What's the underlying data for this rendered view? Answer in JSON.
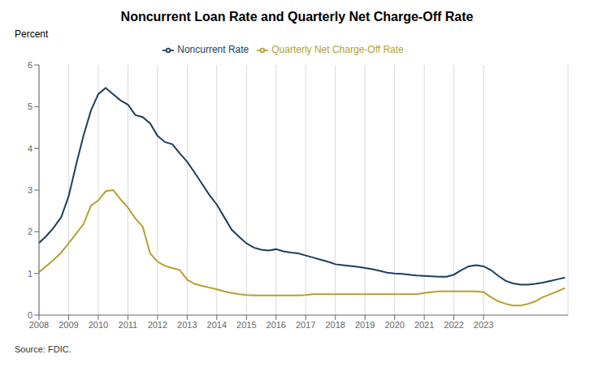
{
  "chart_data": {
    "type": "line",
    "title": "Noncurrent Loan Rate and Quarterly Net Charge-Off Rate",
    "ylabel": "Percent",
    "annotations": [
      "Source: FDIC."
    ],
    "x": [
      2008,
      2008.25,
      2008.5,
      2008.75,
      2009,
      2009.25,
      2009.5,
      2009.75,
      2010,
      2010.25,
      2010.5,
      2010.75,
      2011,
      2011.25,
      2011.5,
      2011.75,
      2012,
      2012.25,
      2012.5,
      2012.75,
      2013,
      2013.25,
      2013.5,
      2013.75,
      2014,
      2014.25,
      2014.5,
      2014.75,
      2015,
      2015.25,
      2015.5,
      2015.75,
      2016,
      2016.25,
      2016.5,
      2016.75,
      2017,
      2017.25,
      2017.5,
      2017.75,
      2018,
      2018.25,
      2018.5,
      2018.75,
      2019,
      2019.25,
      2019.5,
      2019.75,
      2020,
      2020.25,
      2020.5,
      2020.75,
      2021,
      2021.25,
      2021.5,
      2021.75,
      2022,
      2022.25,
      2022.5,
      2022.75,
      2023,
      2023.25,
      2023.5,
      2023.75,
      2024,
      2024.25,
      2024.5,
      2024.75,
      2025,
      2025.25,
      2025.5,
      2025.75
    ],
    "series": [
      {
        "name": "Noncurrent Rate",
        "color": "#1b3f5e",
        "values": [
          1.73,
          1.9,
          2.1,
          2.35,
          2.85,
          3.6,
          4.3,
          4.9,
          5.3,
          5.45,
          5.3,
          5.15,
          5.05,
          4.8,
          4.75,
          4.6,
          4.3,
          4.15,
          4.1,
          3.88,
          3.68,
          3.42,
          3.15,
          2.88,
          2.65,
          2.35,
          2.05,
          1.88,
          1.72,
          1.62,
          1.57,
          1.55,
          1.58,
          1.53,
          1.5,
          1.48,
          1.43,
          1.38,
          1.33,
          1.28,
          1.22,
          1.2,
          1.18,
          1.16,
          1.13,
          1.1,
          1.06,
          1.02,
          1.0,
          0.99,
          0.97,
          0.95,
          0.94,
          0.93,
          0.92,
          0.92,
          0.97,
          1.08,
          1.17,
          1.2,
          1.17,
          1.08,
          0.94,
          0.82,
          0.76,
          0.73,
          0.73,
          0.75,
          0.78,
          0.82,
          0.86,
          0.9
        ]
      },
      {
        "name": "Quarterly Net Charge-Off Rate",
        "color": "#b5a030",
        "values": [
          1.03,
          1.18,
          1.33,
          1.5,
          1.72,
          1.95,
          2.18,
          2.62,
          2.75,
          2.97,
          3.0,
          2.78,
          2.58,
          2.32,
          2.12,
          1.48,
          1.28,
          1.18,
          1.13,
          1.08,
          0.85,
          0.75,
          0.7,
          0.66,
          0.62,
          0.57,
          0.53,
          0.5,
          0.48,
          0.47,
          0.47,
          0.47,
          0.47,
          0.47,
          0.47,
          0.47,
          0.48,
          0.5,
          0.5,
          0.5,
          0.5,
          0.5,
          0.5,
          0.5,
          0.5,
          0.5,
          0.5,
          0.5,
          0.5,
          0.5,
          0.5,
          0.5,
          0.53,
          0.55,
          0.57,
          0.57,
          0.57,
          0.57,
          0.57,
          0.57,
          0.55,
          0.43,
          0.33,
          0.27,
          0.23,
          0.23,
          0.27,
          0.33,
          0.43,
          0.5,
          0.57,
          0.65
        ]
      }
    ],
    "xlim": [
      2008,
      2025.85
    ],
    "xticks": [
      2008,
      2009,
      2010,
      2011,
      2012,
      2013,
      2014,
      2015,
      2016,
      2017,
      2018,
      2019,
      2020,
      2021,
      2022,
      2023
    ],
    "ylim": [
      0,
      6
    ],
    "yticks": [
      0,
      1,
      2,
      3,
      4,
      5,
      6
    ],
    "grid": true,
    "legend": "top"
  }
}
